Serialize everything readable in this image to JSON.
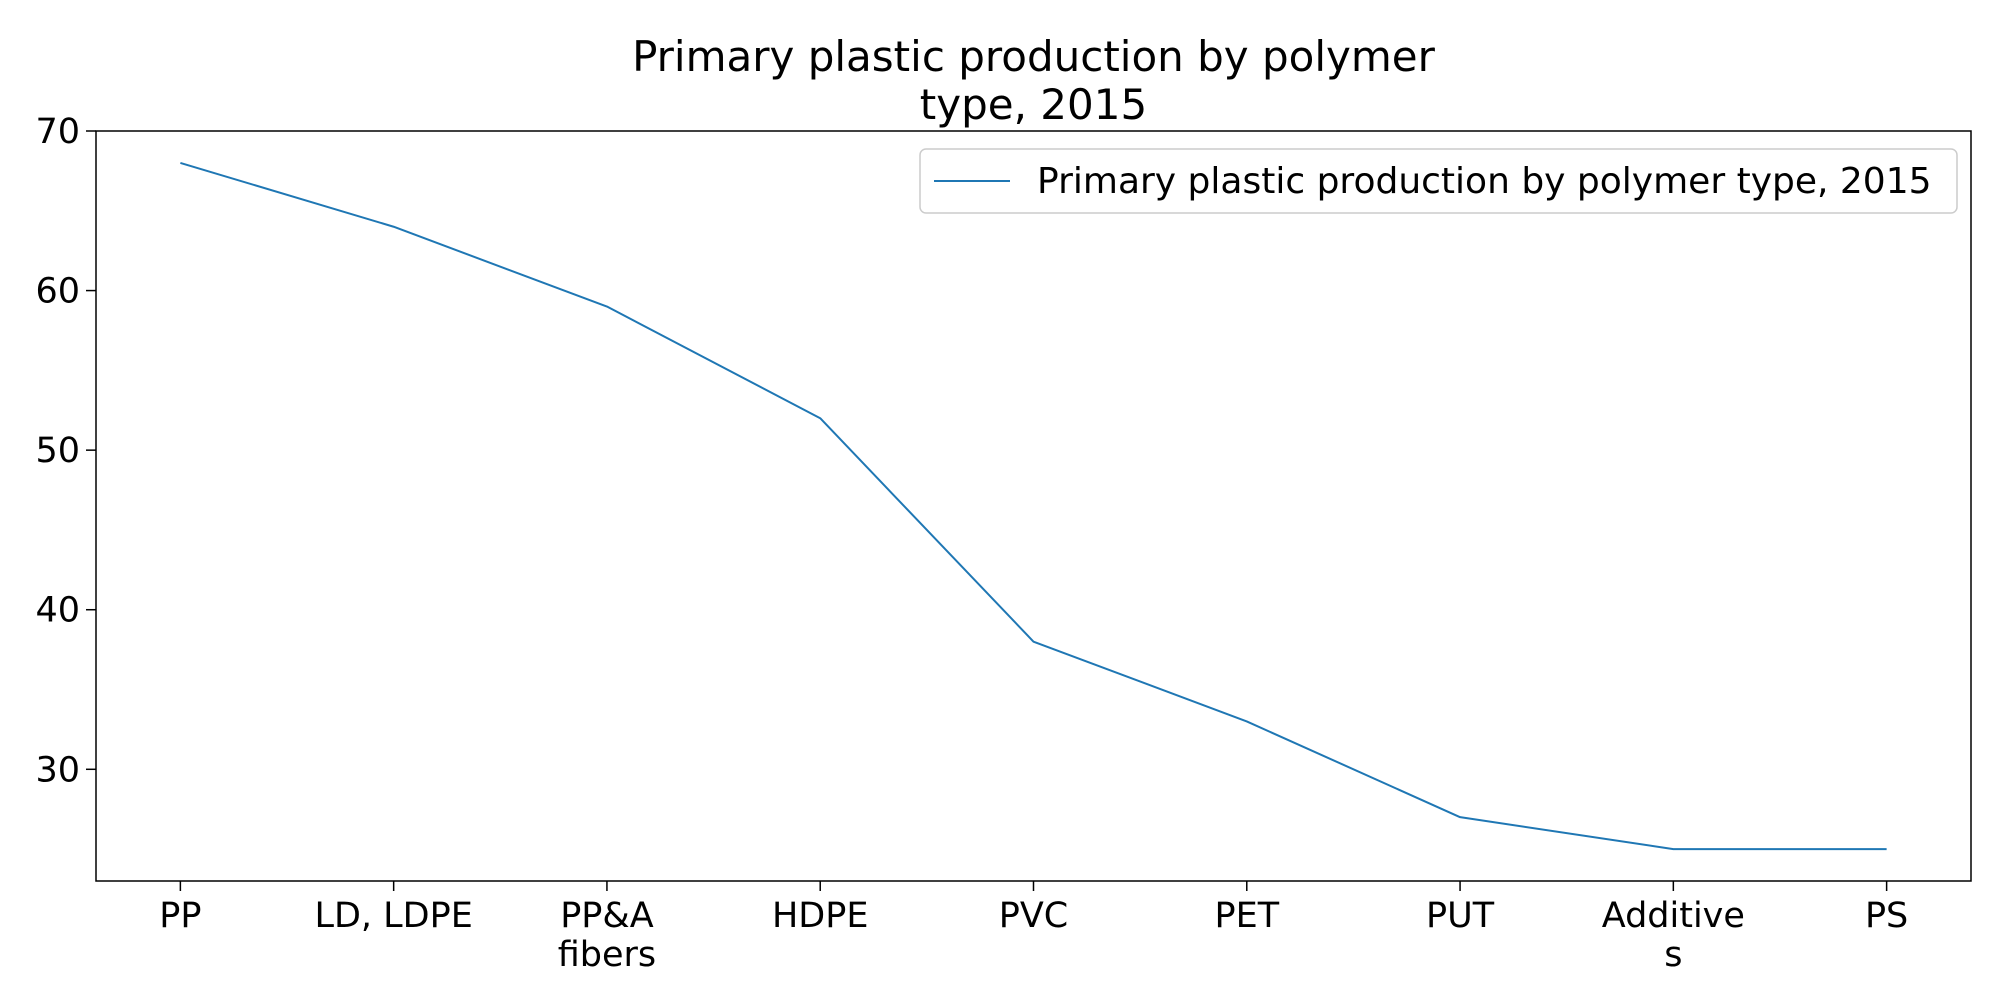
{
  "chart_data": {
    "type": "line",
    "title_lines": [
      "Primary plastic production by polymer",
      "type, 2015"
    ],
    "categories": [
      [
        "PP"
      ],
      [
        "LD, LDPE"
      ],
      [
        "PP&A",
        "fibers"
      ],
      [
        "HDPE"
      ],
      [
        "PVC"
      ],
      [
        "PET"
      ],
      [
        "PUT"
      ],
      [
        "Additive",
        "s"
      ],
      [
        "PS"
      ]
    ],
    "series": [
      {
        "name": "Primary plastic production by polymer type, 2015",
        "values": [
          68,
          64,
          59,
          52,
          38,
          33,
          27,
          25,
          25
        ]
      }
    ],
    "xlabel": "",
    "ylabel": "",
    "ylim": [
      23,
      70
    ],
    "yticks": [
      30,
      40,
      50,
      60,
      70
    ],
    "grid": false,
    "legend_position": "top-right",
    "colors": {
      "line": "#1f77b4",
      "axis": "#000000",
      "legend_border": "#cccccc"
    }
  }
}
